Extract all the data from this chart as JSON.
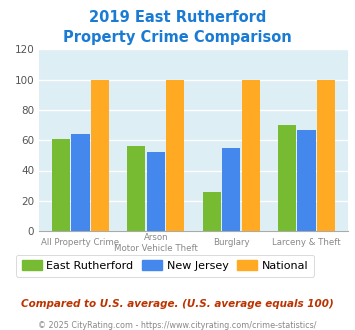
{
  "title_line1": "2019 East Rutherford",
  "title_line2": "Property Crime Comparison",
  "title_color": "#1a7bd4",
  "cat_labels_row1": [
    "All Property Crime",
    "Arson",
    "Burglary",
    "Larceny & Theft"
  ],
  "cat_labels_row2": [
    "",
    "Motor Vehicle Theft",
    "",
    ""
  ],
  "east_rutherford": [
    61,
    56,
    26,
    70
  ],
  "new_jersey": [
    64,
    52,
    55,
    67
  ],
  "national": [
    100,
    100,
    100,
    100
  ],
  "er_color": "#77bb33",
  "nj_color": "#4488ee",
  "nat_color": "#ffaa22",
  "ylim": [
    0,
    120
  ],
  "yticks": [
    0,
    20,
    40,
    60,
    80,
    100,
    120
  ],
  "plot_bg": "#ddeef5",
  "legend_labels": [
    "East Rutherford",
    "New Jersey",
    "National"
  ],
  "footnote1": "Compared to U.S. average. (U.S. average equals 100)",
  "footnote2": "© 2025 CityRating.com - https://www.cityrating.com/crime-statistics/",
  "footnote1_color": "#bb3300",
  "footnote2_color": "#888888",
  "footnote2_link_color": "#3388cc"
}
